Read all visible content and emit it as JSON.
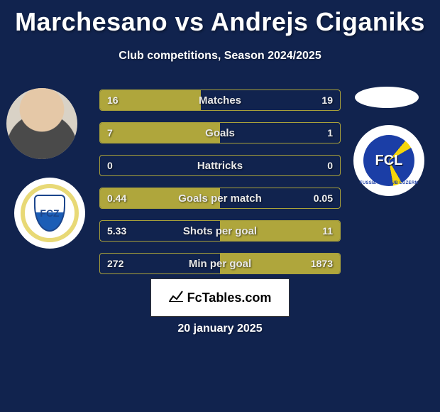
{
  "title": "Marchesano vs Andrejs Ciganiks",
  "subtitle": "Club competitions, Season 2024/2025",
  "date": "20 january 2025",
  "watermark": "FcTables.com",
  "colors": {
    "background": "#11234e",
    "bar_fill": "#afa63c",
    "bar_border": "#a9a13a",
    "text": "#ffffff"
  },
  "bar_font_size": 15,
  "value_font_size": 14,
  "title_font_size": 36,
  "subtitle_font_size": 16,
  "bars": [
    {
      "label": "Matches",
      "left_val": "16",
      "right_val": "19",
      "left_pct": 42,
      "right_pct": 0
    },
    {
      "label": "Goals",
      "left_val": "7",
      "right_val": "1",
      "left_pct": 50,
      "right_pct": 0
    },
    {
      "label": "Hattricks",
      "left_val": "0",
      "right_val": "0",
      "left_pct": 0,
      "right_pct": 0
    },
    {
      "label": "Goals per match",
      "left_val": "0.44",
      "right_val": "0.05",
      "left_pct": 50,
      "right_pct": 0
    },
    {
      "label": "Shots per goal",
      "left_val": "5.33",
      "right_val": "11",
      "left_pct": 0,
      "right_pct": 50
    },
    {
      "label": "Min per goal",
      "left_val": "272",
      "right_val": "1873",
      "left_pct": 0,
      "right_pct": 50
    }
  ],
  "player_left": {
    "name": "Marchesano",
    "club": "FCZ"
  },
  "player_right": {
    "name": "Andrejs Ciganiks",
    "club": "FCL"
  }
}
